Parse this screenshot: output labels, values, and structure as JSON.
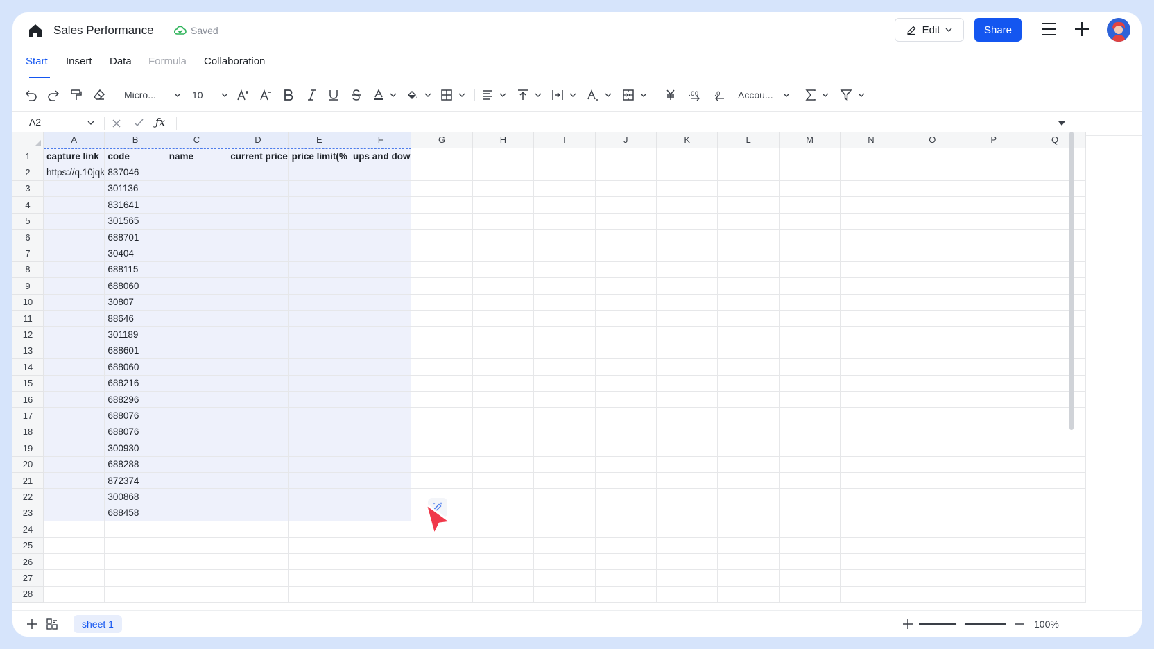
{
  "header": {
    "title": "Sales Performance",
    "saved_label": "Saved",
    "edit_label": "Edit",
    "share_label": "Share"
  },
  "tabs": [
    {
      "label": "Start",
      "state": "active"
    },
    {
      "label": "Insert",
      "state": "normal"
    },
    {
      "label": "Data",
      "state": "normal"
    },
    {
      "label": "Formula",
      "state": "disabled"
    },
    {
      "label": "Collaboration",
      "state": "normal"
    }
  ],
  "toolbar": {
    "font_name": "Micro...",
    "font_size": "10",
    "number_format": "Accou..."
  },
  "formula_bar": {
    "cell_ref": "A2",
    "fx_label": "ƒx",
    "value": ""
  },
  "grid": {
    "columns": [
      "A",
      "B",
      "C",
      "D",
      "E",
      "F",
      "G",
      "H",
      "I",
      "J",
      "K",
      "L",
      "M",
      "N",
      "O",
      "P",
      "Q"
    ],
    "rows": [
      "1",
      "2",
      "3",
      "4",
      "5",
      "6",
      "7",
      "8",
      "9",
      "10",
      "11",
      "12",
      "13",
      "14",
      "15",
      "16",
      "17",
      "18",
      "19",
      "20",
      "21",
      "22",
      "23",
      "24",
      "25",
      "26",
      "27",
      "28"
    ],
    "header_row": [
      "capture link",
      "code",
      "name",
      "current price",
      "price limit(%",
      "ups and dow"
    ],
    "link_cell": "https://q.10jqk",
    "codes": [
      "837046",
      "301136",
      "831641",
      "301565",
      "688701",
      "30404",
      "688115",
      "688060",
      "30807",
      "88646",
      "301189",
      "688601",
      "688060",
      "688216",
      "688296",
      "688076",
      "688076",
      "300930",
      "688288",
      "872374",
      "300868",
      "688458"
    ]
  },
  "footer": {
    "sheet_name": "sheet 1",
    "zoom": "100%"
  },
  "colors": {
    "accent": "#1456f0",
    "selection": "#4b7bec",
    "cursor": "#f0384a"
  }
}
